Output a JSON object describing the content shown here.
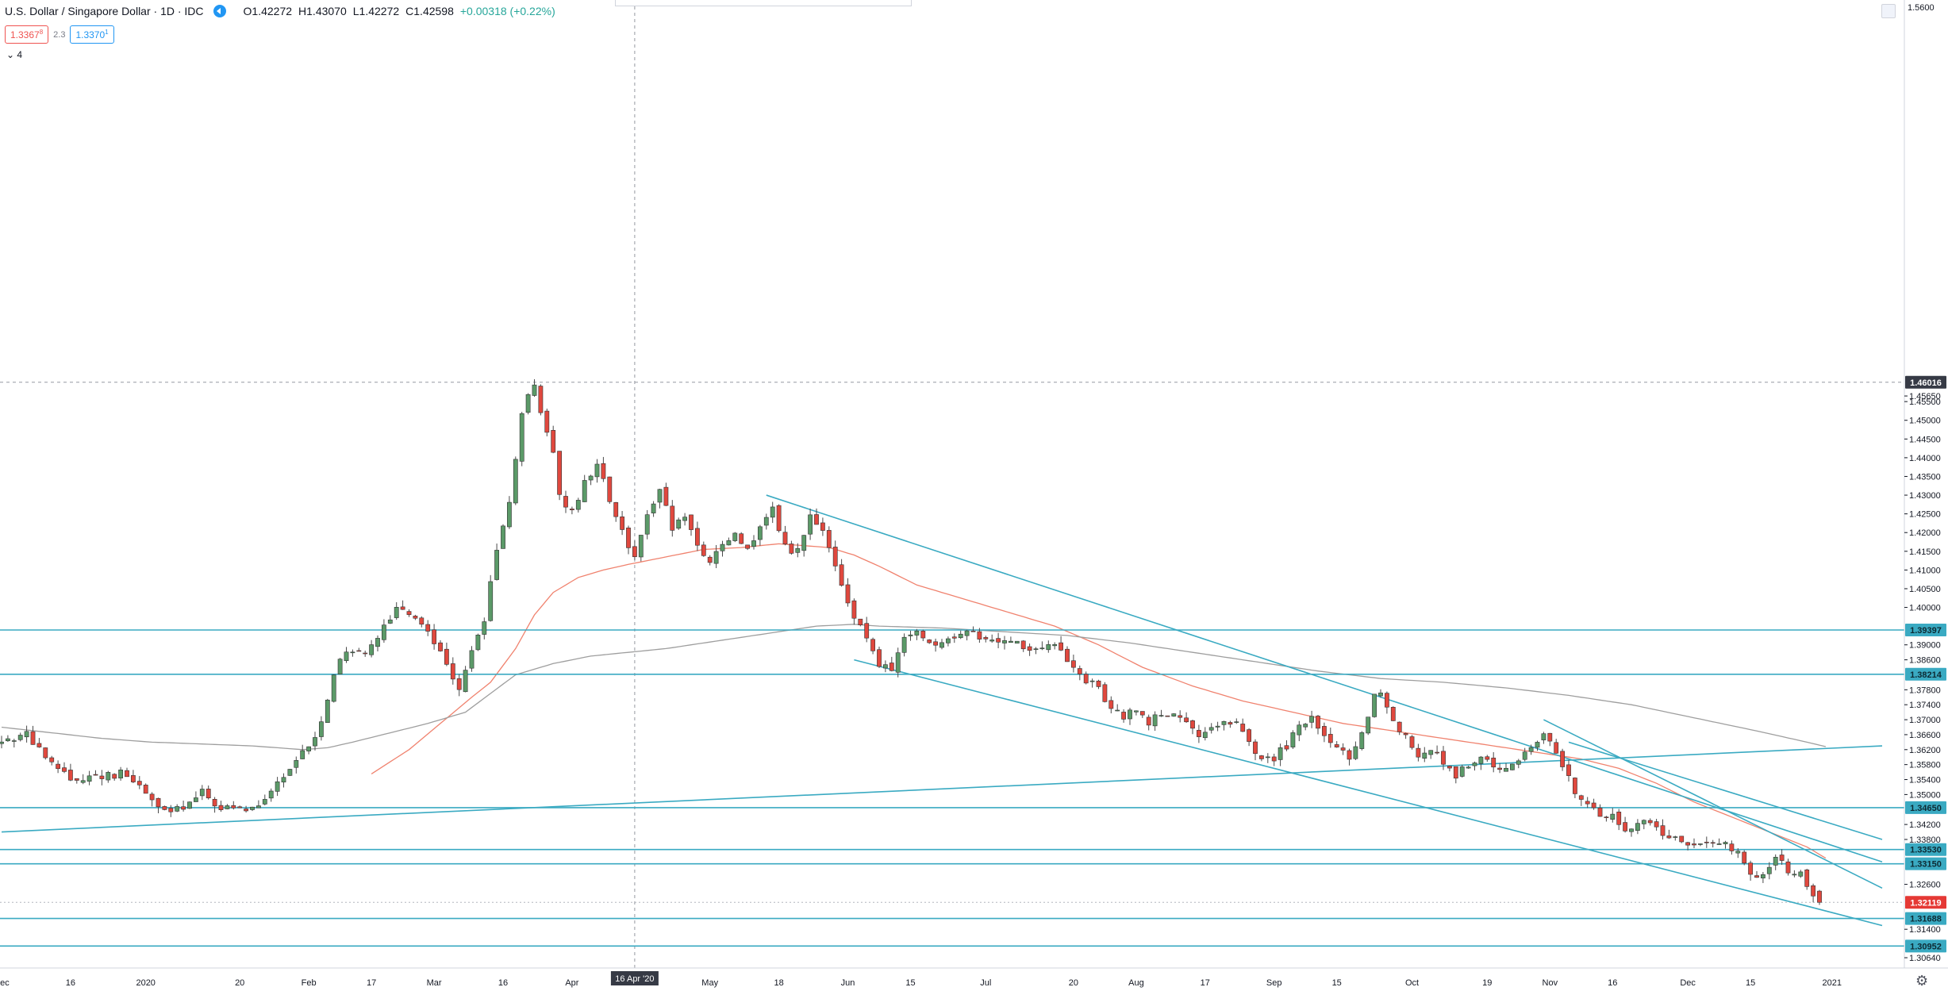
{
  "header": {
    "symbol": "U.S. Dollar / Singapore Dollar · 1D · IDC",
    "open": "O1.42272",
    "high": "H1.43070",
    "low": "L1.42272",
    "close": "C1.42598",
    "change": "+0.00318 (+0.22%)"
  },
  "quote": {
    "bid": "1.3367",
    "bid_sup": "8",
    "spread": "2.3",
    "ask": "1.3370",
    "ask_sup": "1"
  },
  "indicator_toggle": {
    "count": "4"
  },
  "crosshair_date_label": "16 Apr '20",
  "price_axis_top": "1.5600",
  "colors": {
    "bull": "#5b9a68",
    "bear": "#e0483e",
    "line": "#3aaac2",
    "ma_fast": "#f0826e",
    "ma_slow": "#9e9e9e",
    "price_label": "#e53935",
    "level_label": "#3aaac2",
    "crosshair_label": "#363a45"
  },
  "chart_data": {
    "type": "candlestick",
    "symbol": "USDSGD",
    "timeframe": "1D",
    "y_range": [
      1.3045,
      1.5604
    ],
    "y_ticks": [
      "1.45650",
      "1.45500",
      "1.45000",
      "1.44500",
      "1.44000",
      "1.43500",
      "1.43000",
      "1.42500",
      "1.42000",
      "1.41500",
      "1.41000",
      "1.40500",
      "1.40000",
      "1.39500",
      "1.39000",
      "1.38600",
      "1.38200",
      "1.37800",
      "1.37400",
      "1.37000",
      "1.36600",
      "1.36200",
      "1.35800",
      "1.35400",
      "1.35000",
      "1.34600",
      "1.34200",
      "1.33800",
      "1.33400",
      "1.33000",
      "1.32600",
      "1.32200",
      "1.31800",
      "1.31400",
      "1.31000",
      "1.30640"
    ],
    "x_ticks": [
      {
        "label": "Dec",
        "d": 0
      },
      {
        "label": "16",
        "d": 11
      },
      {
        "label": "2020",
        "d": 23
      },
      {
        "label": "20",
        "d": 38
      },
      {
        "label": "Feb",
        "d": 49
      },
      {
        "label": "17",
        "d": 59
      },
      {
        "label": "Mar",
        "d": 69
      },
      {
        "label": "16",
        "d": 80
      },
      {
        "label": "Apr",
        "d": 91
      },
      {
        "label": "May",
        "d": 113
      },
      {
        "label": "18",
        "d": 124
      },
      {
        "label": "Jun",
        "d": 135
      },
      {
        "label": "15",
        "d": 145
      },
      {
        "label": "Jul",
        "d": 157
      },
      {
        "label": "20",
        "d": 171
      },
      {
        "label": "Aug",
        "d": 181
      },
      {
        "label": "17",
        "d": 192
      },
      {
        "label": "Sep",
        "d": 203
      },
      {
        "label": "15",
        "d": 213
      },
      {
        "label": "Oct",
        "d": 225
      },
      {
        "label": "19",
        "d": 237
      },
      {
        "label": "Nov",
        "d": 247
      },
      {
        "label": "16",
        "d": 257
      },
      {
        "label": "Dec",
        "d": 269
      },
      {
        "label": "15",
        "d": 279
      },
      {
        "label": "2021",
        "d": 292
      }
    ],
    "anchors": [
      [
        0,
        1.3635
      ],
      [
        5,
        1.366
      ],
      [
        8,
        1.3595
      ],
      [
        12,
        1.354
      ],
      [
        16,
        1.355
      ],
      [
        20,
        1.3555
      ],
      [
        23,
        1.3525
      ],
      [
        26,
        1.3465
      ],
      [
        28,
        1.345
      ],
      [
        31,
        1.348
      ],
      [
        33,
        1.3505
      ],
      [
        36,
        1.3465
      ],
      [
        39,
        1.3455
      ],
      [
        42,
        1.348
      ],
      [
        45,
        1.353
      ],
      [
        48,
        1.359
      ],
      [
        51,
        1.365
      ],
      [
        53,
        1.376
      ],
      [
        55,
        1.387
      ],
      [
        58,
        1.388
      ],
      [
        60,
        1.3895
      ],
      [
        62,
        1.395
      ],
      [
        64,
        1.4
      ],
      [
        66,
        1.398
      ],
      [
        69,
        1.3945
      ],
      [
        71,
        1.388
      ],
      [
        73,
        1.381
      ],
      [
        74,
        1.379
      ],
      [
        76,
        1.389
      ],
      [
        78,
        1.396
      ],
      [
        80,
        1.416
      ],
      [
        82,
        1.428
      ],
      [
        83,
        1.44
      ],
      [
        84,
        1.452
      ],
      [
        86,
        1.46
      ],
      [
        87,
        1.451
      ],
      [
        89,
        1.442
      ],
      [
        90,
        1.43
      ],
      [
        92,
        1.425
      ],
      [
        94,
        1.433
      ],
      [
        96,
        1.438
      ],
      [
        98,
        1.429
      ],
      [
        100,
        1.42
      ],
      [
        102,
        1.414
      ],
      [
        104,
        1.425
      ],
      [
        106,
        1.432
      ],
      [
        108,
        1.421
      ],
      [
        110,
        1.425
      ],
      [
        112,
        1.417
      ],
      [
        114,
        1.411
      ],
      [
        116,
        1.417
      ],
      [
        118,
        1.42
      ],
      [
        120,
        1.415
      ],
      [
        122,
        1.421
      ],
      [
        124,
        1.426
      ],
      [
        126,
        1.416
      ],
      [
        128,
        1.415
      ],
      [
        130,
        1.425
      ],
      [
        132,
        1.42
      ],
      [
        133,
        1.416
      ],
      [
        135,
        1.405
      ],
      [
        137,
        1.398
      ],
      [
        139,
        1.392
      ],
      [
        141,
        1.385
      ],
      [
        143,
        1.383
      ],
      [
        145,
        1.392
      ],
      [
        147,
        1.394
      ],
      [
        150,
        1.389
      ],
      [
        153,
        1.392
      ],
      [
        156,
        1.393
      ],
      [
        159,
        1.391
      ],
      [
        162,
        1.392
      ],
      [
        165,
        1.388
      ],
      [
        168,
        1.391
      ],
      [
        171,
        1.386
      ],
      [
        173,
        1.382
      ],
      [
        176,
        1.378
      ],
      [
        178,
        1.373
      ],
      [
        180,
        1.371
      ],
      [
        182,
        1.373
      ],
      [
        184,
        1.369
      ],
      [
        186,
        1.372
      ],
      [
        188,
        1.3705
      ],
      [
        190,
        1.369
      ],
      [
        192,
        1.365
      ],
      [
        194,
        1.367
      ],
      [
        196,
        1.37
      ],
      [
        198,
        1.369
      ],
      [
        200,
        1.365
      ],
      [
        202,
        1.359
      ],
      [
        204,
        1.36
      ],
      [
        206,
        1.363
      ],
      [
        208,
        1.368
      ],
      [
        210,
        1.37
      ],
      [
        212,
        1.365
      ],
      [
        214,
        1.362
      ],
      [
        216,
        1.36
      ],
      [
        218,
        1.367
      ],
      [
        220,
        1.376
      ],
      [
        221,
        1.378
      ],
      [
        223,
        1.37
      ],
      [
        225,
        1.365
      ],
      [
        227,
        1.361
      ],
      [
        229,
        1.362
      ],
      [
        231,
        1.359
      ],
      [
        233,
        1.355
      ],
      [
        235,
        1.358
      ],
      [
        237,
        1.359
      ],
      [
        239,
        1.358
      ],
      [
        241,
        1.356
      ],
      [
        243,
        1.36
      ],
      [
        245,
        1.363
      ],
      [
        247,
        1.366
      ],
      [
        248,
        1.365
      ],
      [
        250,
        1.358
      ],
      [
        252,
        1.351
      ],
      [
        254,
        1.347
      ],
      [
        256,
        1.345
      ],
      [
        258,
        1.344
      ],
      [
        260,
        1.34
      ],
      [
        262,
        1.342
      ],
      [
        264,
        1.343
      ],
      [
        266,
        1.34
      ],
      [
        268,
        1.338
      ],
      [
        270,
        1.336
      ],
      [
        272,
        1.337
      ],
      [
        274,
        1.338
      ],
      [
        276,
        1.337
      ],
      [
        278,
        1.334
      ],
      [
        280,
        1.328
      ],
      [
        282,
        1.329
      ],
      [
        284,
        1.334
      ],
      [
        286,
        1.33
      ],
      [
        288,
        1.329
      ],
      [
        290,
        1.323
      ]
    ],
    "last_candle": {
      "open": 1.3242,
      "high": 1.3245,
      "low": 1.3205,
      "close": 1.3212
    },
    "moving_averages": [
      {
        "label": "fast",
        "color": "#f0826e",
        "start_day": 59,
        "anchors": [
          [
            59,
            1.3555
          ],
          [
            65,
            1.362
          ],
          [
            70,
            1.369
          ],
          [
            75,
            1.376
          ],
          [
            78,
            1.38
          ],
          [
            82,
            1.389
          ],
          [
            85,
            1.398
          ],
          [
            88,
            1.404
          ],
          [
            92,
            1.408
          ],
          [
            96,
            1.41
          ],
          [
            100,
            1.4115
          ],
          [
            106,
            1.4135
          ],
          [
            112,
            1.4155
          ],
          [
            118,
            1.416
          ],
          [
            124,
            1.417
          ],
          [
            128,
            1.4165
          ],
          [
            132,
            1.416
          ],
          [
            136,
            1.414
          ],
          [
            140,
            1.411
          ],
          [
            146,
            1.406
          ],
          [
            152,
            1.403
          ],
          [
            160,
            1.399
          ],
          [
            168,
            1.395
          ],
          [
            175,
            1.39
          ],
          [
            182,
            1.384
          ],
          [
            190,
            1.379
          ],
          [
            198,
            1.375
          ],
          [
            206,
            1.372
          ],
          [
            214,
            1.369
          ],
          [
            222,
            1.367
          ],
          [
            230,
            1.365
          ],
          [
            238,
            1.363
          ],
          [
            246,
            1.361
          ],
          [
            252,
            1.3595
          ],
          [
            258,
            1.357
          ],
          [
            264,
            1.353
          ],
          [
            270,
            1.348
          ],
          [
            276,
            1.344
          ],
          [
            282,
            1.34
          ],
          [
            288,
            1.336
          ],
          [
            291,
            1.333
          ]
        ]
      },
      {
        "label": "slow",
        "color": "#9e9e9e",
        "start_day": 0,
        "anchors": [
          [
            0,
            1.368
          ],
          [
            8,
            1.3665
          ],
          [
            16,
            1.365
          ],
          [
            24,
            1.364
          ],
          [
            32,
            1.3635
          ],
          [
            40,
            1.363
          ],
          [
            48,
            1.362
          ],
          [
            52,
            1.3625
          ],
          [
            56,
            1.364
          ],
          [
            62,
            1.3665
          ],
          [
            68,
            1.369
          ],
          [
            74,
            1.372
          ],
          [
            78,
            1.377
          ],
          [
            82,
            1.382
          ],
          [
            88,
            1.385
          ],
          [
            94,
            1.387
          ],
          [
            100,
            1.388
          ],
          [
            106,
            1.389
          ],
          [
            112,
            1.3905
          ],
          [
            118,
            1.392
          ],
          [
            124,
            1.3935
          ],
          [
            130,
            1.395
          ],
          [
            136,
            1.3955
          ],
          [
            140,
            1.395
          ],
          [
            150,
            1.3945
          ],
          [
            160,
            1.3935
          ],
          [
            170,
            1.3925
          ],
          [
            180,
            1.3905
          ],
          [
            190,
            1.388
          ],
          [
            200,
            1.3855
          ],
          [
            210,
            1.383
          ],
          [
            220,
            1.381
          ],
          [
            230,
            1.38
          ],
          [
            240,
            1.3785
          ],
          [
            250,
            1.3765
          ],
          [
            260,
            1.374
          ],
          [
            270,
            1.3705
          ],
          [
            280,
            1.367
          ],
          [
            288,
            1.364
          ],
          [
            291,
            1.3628
          ]
        ]
      }
    ],
    "horizontal_levels": [
      {
        "value": 1.39397,
        "label": "1.39397"
      },
      {
        "value": 1.38214,
        "label": "1.38214"
      },
      {
        "value": 1.3465,
        "label": "1.34650"
      },
      {
        "value": 1.3353,
        "label": "1.33530"
      },
      {
        "value": 1.3315,
        "label": "1.33150"
      },
      {
        "value": 1.31688,
        "label": "1.31688"
      },
      {
        "value": 1.30952,
        "label": "1.30952"
      }
    ],
    "trend_lines": [
      {
        "from": [
          122,
          1.43
        ],
        "to": [
          300,
          1.332
        ]
      },
      {
        "from": [
          136,
          1.386
        ],
        "to": [
          300,
          1.315
        ]
      },
      {
        "from": [
          0,
          1.34
        ],
        "to": [
          300,
          1.363
        ]
      },
      {
        "from": [
          246,
          1.37
        ],
        "to": [
          300,
          1.325
        ]
      },
      {
        "from": [
          250,
          1.364
        ],
        "to": [
          300,
          1.338
        ]
      }
    ],
    "last_price_label": "1.32119",
    "last_price": 1.32119,
    "dashed_top_level": {
      "value": 1.46016,
      "label": "1.46016"
    },
    "crosshair_day": 101
  }
}
